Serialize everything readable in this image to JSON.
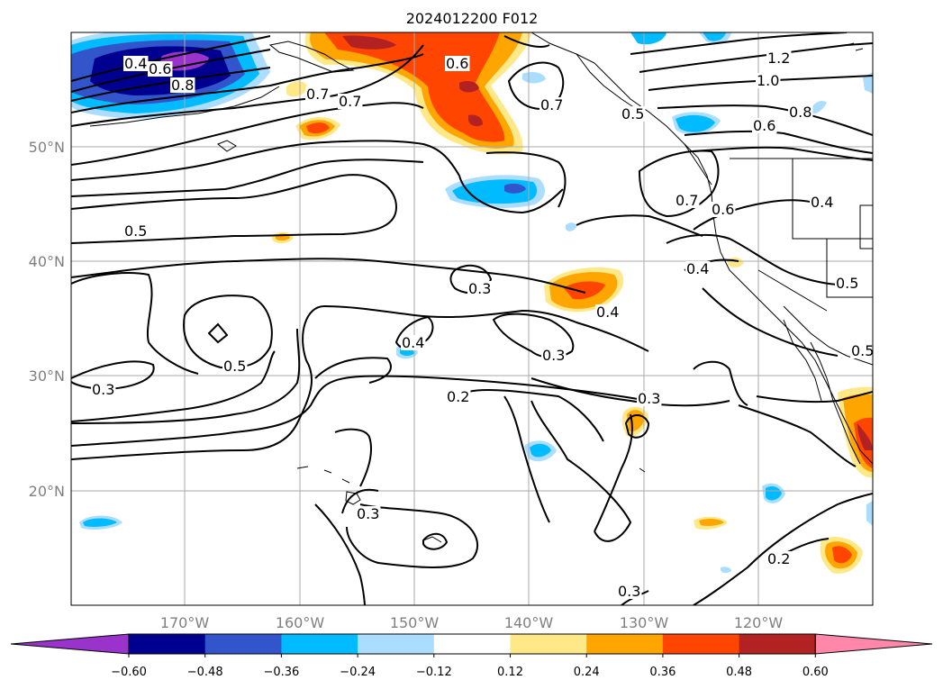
{
  "title": "2024012200 F012",
  "lat_labels": [
    "50°N",
    "40°N",
    "30°N",
    "20°N"
  ],
  "lon_labels": [
    "170°W",
    "160°W",
    "150°W",
    "140°W",
    "130°W",
    "120°W"
  ],
  "colorbar": {
    "ticks": [
      "−0.60",
      "−0.48",
      "−0.36",
      "−0.24",
      "−0.12",
      "0.12",
      "0.24",
      "0.36",
      "0.48",
      "0.60"
    ],
    "colors": [
      "#9933cc",
      "#000090",
      "#3355cc",
      "#00bbff",
      "#aaddff",
      "#ffffff",
      "#ffe888",
      "#ffa500",
      "#ff4500",
      "#b22222",
      "#ff88aa"
    ]
  },
  "contour_labels": [
    "0.4",
    "0.6",
    "0.8",
    "0.7",
    "0.6",
    "0.7",
    "0.7",
    "0.5",
    "1.2",
    "1.0",
    "0.8",
    "0.6",
    "0.7",
    "0.6",
    "0.4",
    "0.4",
    "0.5",
    "0.5",
    "0.5",
    "0.3",
    "0.5",
    "0.3",
    "0.4",
    "0.4",
    "0.3",
    "0.2",
    "0.3",
    "0.3",
    "0.3",
    "0.2"
  ]
}
